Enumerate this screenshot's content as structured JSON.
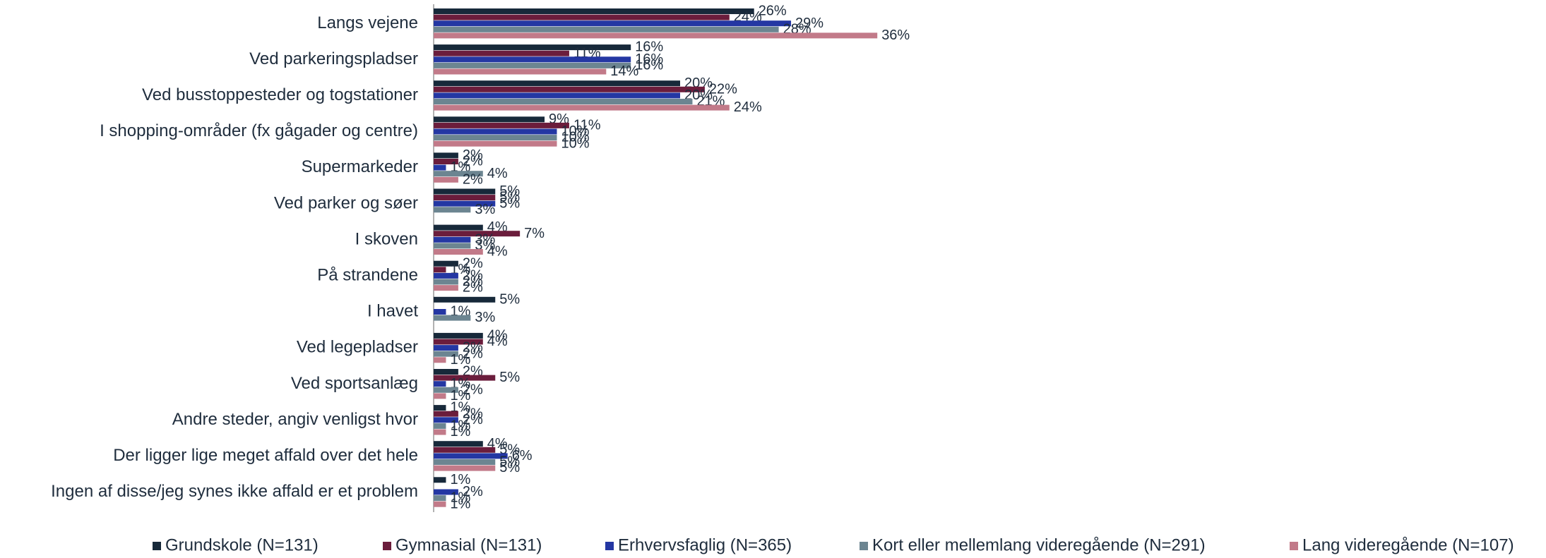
{
  "chart_data": {
    "type": "bar",
    "orientation": "horizontal",
    "categories": [
      "Langs vejene",
      "Ved parkeringspladser",
      "Ved busstoppesteder og togstationer",
      "I shopping-områder (fx gågader og centre)",
      "Supermarkeder",
      "Ved parker og søer",
      "I skoven",
      "På strandene",
      "I havet",
      "Ved legepladser",
      "Ved sportsanlæg",
      "Andre steder, angiv venligst hvor",
      "Der ligger lige meget affald over det hele",
      "Ingen af disse/jeg synes ikke affald er et problem"
    ],
    "series": [
      {
        "name": "Grundskole (N=131)",
        "color": "#17293a",
        "values": [
          26,
          16,
          20,
          9,
          2,
          5,
          4,
          2,
          5,
          4,
          2,
          1,
          4,
          1
        ],
        "value_labels": [
          "26%",
          "16%",
          "20%",
          "9%",
          "2%",
          "5%",
          "4%",
          "2%",
          "5%",
          "4%",
          "2%",
          "1%",
          "4%",
          "1%"
        ]
      },
      {
        "name": "Gymnasial (N=131)",
        "color": "#6b1d3c",
        "values": [
          24,
          11,
          22,
          11,
          2,
          5,
          7,
          1,
          null,
          4,
          5,
          2,
          5,
          null
        ],
        "value_labels": [
          "24%",
          "11%",
          "22%",
          "11%",
          "2%",
          "5%",
          "7%",
          "1%",
          null,
          "4%",
          "5%",
          "2%",
          "5%",
          null
        ]
      },
      {
        "name": "Erhvervsfaglig (N=365)",
        "color": "#2437a3",
        "values": [
          29,
          16,
          20,
          10,
          1,
          5,
          3,
          2,
          1,
          2,
          1,
          2,
          6,
          2
        ],
        "value_labels": [
          "29%",
          "16%",
          "20%",
          "10%",
          "1%",
          "5%",
          "3%",
          "2%",
          "1%",
          "2%",
          "1%",
          "2%",
          "6%",
          "2%"
        ]
      },
      {
        "name": "Kort eller mellemlang videregående (N=291)",
        "color": "#6c8591",
        "values": [
          28,
          16,
          21,
          10,
          4,
          3,
          3,
          2,
          3,
          2,
          2,
          1,
          5,
          1
        ],
        "value_labels": [
          "28%",
          "16%",
          "21%",
          "10%",
          "4%",
          "3%",
          "3%",
          "2%",
          "3%",
          "2%",
          "2%",
          "1%",
          "5%",
          "1%"
        ]
      },
      {
        "name": "Lang videregående (N=107)",
        "color": "#c27a89",
        "values": [
          36,
          14,
          24,
          10,
          2,
          null,
          4,
          2,
          null,
          1,
          1,
          1,
          5,
          1
        ],
        "value_labels": [
          "36%",
          "14%",
          "24%",
          "10%",
          "2%",
          null,
          "4%",
          "2%",
          null,
          "1%",
          "1%",
          "1%",
          "5%",
          "1%"
        ]
      }
    ],
    "legend": "bottom"
  }
}
